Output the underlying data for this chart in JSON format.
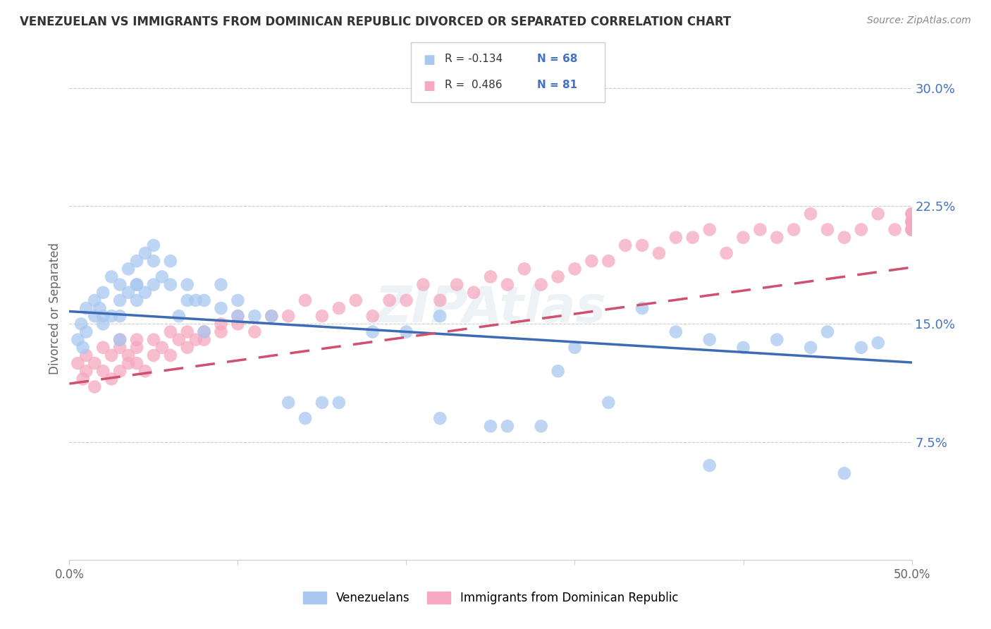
{
  "title": "VENEZUELAN VS IMMIGRANTS FROM DOMINICAN REPUBLIC DIVORCED OR SEPARATED CORRELATION CHART",
  "source": "Source: ZipAtlas.com",
  "ylabel": "Divorced or Separated",
  "xlabel": "",
  "xlim": [
    0.0,
    0.5
  ],
  "ylim": [
    0.0,
    0.32
  ],
  "xticks": [
    0.0,
    0.1,
    0.2,
    0.3,
    0.4,
    0.5
  ],
  "xtick_labels": [
    "0.0%",
    "",
    "",
    "",
    "",
    "50.0%"
  ],
  "yticks_right": [
    0.075,
    0.15,
    0.225,
    0.3
  ],
  "ytick_labels_right": [
    "7.5%",
    "15.0%",
    "22.5%",
    "30.0%"
  ],
  "legend_r1": "R = -0.134",
  "legend_n1": "N = 68",
  "legend_r2": "R =  0.486",
  "legend_n2": "N = 81",
  "blue_color": "#a8c8f0",
  "pink_color": "#f5a8c0",
  "blue_line_color": "#3d6bb5",
  "pink_line_color": "#d05070",
  "legend_label1": "Venezuelans",
  "legend_label2": "Immigrants from Dominican Republic",
  "watermark": "ZIPAtlas",
  "title_color": "#333333",
  "source_color": "#888888",
  "axis_color": "#666666",
  "grid_color": "#cccccc",
  "right_tick_color": "#4472c4",
  "legend_n_color": "#4472c4",
  "legend_r_color": "#333333",
  "ven_line_intercept": 0.158,
  "ven_line_slope": -0.065,
  "dom_line_intercept": 0.112,
  "dom_line_slope": 0.148,
  "venezuelan_x": [
    0.005,
    0.007,
    0.008,
    0.01,
    0.01,
    0.015,
    0.015,
    0.018,
    0.02,
    0.02,
    0.02,
    0.025,
    0.025,
    0.03,
    0.03,
    0.03,
    0.03,
    0.035,
    0.035,
    0.04,
    0.04,
    0.04,
    0.04,
    0.045,
    0.045,
    0.05,
    0.05,
    0.05,
    0.055,
    0.06,
    0.06,
    0.065,
    0.07,
    0.07,
    0.075,
    0.08,
    0.08,
    0.09,
    0.09,
    0.1,
    0.1,
    0.11,
    0.12,
    0.13,
    0.14,
    0.15,
    0.16,
    0.18,
    0.2,
    0.22,
    0.22,
    0.25,
    0.26,
    0.28,
    0.29,
    0.3,
    0.32,
    0.34,
    0.36,
    0.38,
    0.38,
    0.4,
    0.42,
    0.44,
    0.45,
    0.46,
    0.47,
    0.48
  ],
  "venezuelan_y": [
    0.14,
    0.15,
    0.135,
    0.16,
    0.145,
    0.155,
    0.165,
    0.16,
    0.15,
    0.17,
    0.155,
    0.155,
    0.18,
    0.155,
    0.165,
    0.14,
    0.175,
    0.17,
    0.185,
    0.165,
    0.175,
    0.175,
    0.19,
    0.17,
    0.195,
    0.175,
    0.19,
    0.2,
    0.18,
    0.175,
    0.19,
    0.155,
    0.165,
    0.175,
    0.165,
    0.145,
    0.165,
    0.16,
    0.175,
    0.155,
    0.165,
    0.155,
    0.155,
    0.1,
    0.09,
    0.1,
    0.1,
    0.145,
    0.145,
    0.155,
    0.09,
    0.085,
    0.085,
    0.085,
    0.12,
    0.135,
    0.1,
    0.16,
    0.145,
    0.14,
    0.06,
    0.135,
    0.14,
    0.135,
    0.145,
    0.055,
    0.135,
    0.138
  ],
  "dominican_x": [
    0.005,
    0.008,
    0.01,
    0.01,
    0.015,
    0.015,
    0.02,
    0.02,
    0.025,
    0.025,
    0.03,
    0.03,
    0.03,
    0.035,
    0.035,
    0.04,
    0.04,
    0.04,
    0.045,
    0.05,
    0.05,
    0.055,
    0.06,
    0.06,
    0.065,
    0.07,
    0.07,
    0.075,
    0.08,
    0.08,
    0.09,
    0.09,
    0.1,
    0.1,
    0.11,
    0.12,
    0.13,
    0.14,
    0.15,
    0.16,
    0.17,
    0.18,
    0.19,
    0.2,
    0.21,
    0.22,
    0.23,
    0.24,
    0.25,
    0.26,
    0.27,
    0.28,
    0.29,
    0.3,
    0.31,
    0.32,
    0.33,
    0.34,
    0.35,
    0.36,
    0.37,
    0.38,
    0.39,
    0.4,
    0.41,
    0.42,
    0.43,
    0.44,
    0.45,
    0.46,
    0.47,
    0.48,
    0.49,
    0.5,
    0.5,
    0.5,
    0.5,
    0.5,
    0.5,
    0.5,
    0.5
  ],
  "dominican_y": [
    0.125,
    0.115,
    0.12,
    0.13,
    0.11,
    0.125,
    0.12,
    0.135,
    0.115,
    0.13,
    0.12,
    0.14,
    0.135,
    0.125,
    0.13,
    0.125,
    0.14,
    0.135,
    0.12,
    0.13,
    0.14,
    0.135,
    0.13,
    0.145,
    0.14,
    0.145,
    0.135,
    0.14,
    0.145,
    0.14,
    0.15,
    0.145,
    0.15,
    0.155,
    0.145,
    0.155,
    0.155,
    0.165,
    0.155,
    0.16,
    0.165,
    0.155,
    0.165,
    0.165,
    0.175,
    0.165,
    0.175,
    0.17,
    0.18,
    0.175,
    0.185,
    0.175,
    0.18,
    0.185,
    0.19,
    0.19,
    0.2,
    0.2,
    0.195,
    0.205,
    0.205,
    0.21,
    0.195,
    0.205,
    0.21,
    0.205,
    0.21,
    0.22,
    0.21,
    0.205,
    0.21,
    0.22,
    0.21,
    0.21,
    0.215,
    0.215,
    0.22,
    0.21,
    0.215,
    0.22,
    0.21
  ]
}
